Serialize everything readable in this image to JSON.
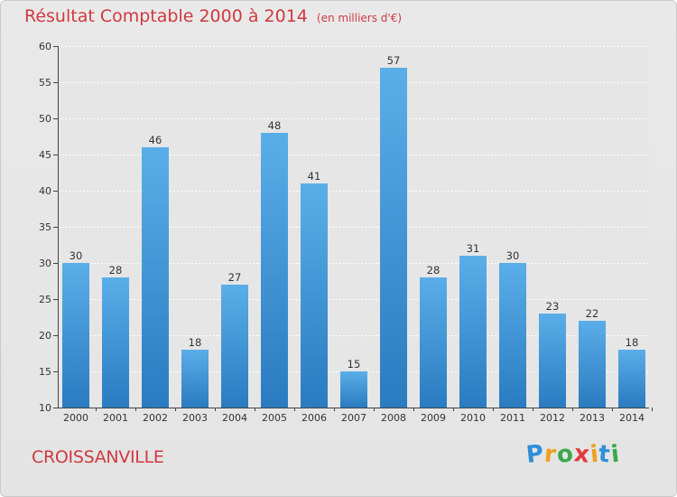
{
  "chart_data": {
    "type": "bar",
    "title": "Résultat Comptable 2000 à 2014",
    "subtitle": "(en milliers d'€)",
    "categories": [
      "2000",
      "2001",
      "2002",
      "2003",
      "2004",
      "2005",
      "2006",
      "2007",
      "2008",
      "2009",
      "2010",
      "2011",
      "2012",
      "2013",
      "2014"
    ],
    "values": [
      30,
      28,
      46,
      18,
      27,
      48,
      41,
      15,
      57,
      28,
      31,
      30,
      23,
      22,
      18
    ],
    "ylim": [
      10,
      60
    ],
    "yticks": [
      10,
      15,
      20,
      25,
      30,
      35,
      40,
      45,
      50,
      55,
      60
    ],
    "grid": true,
    "xlabel": "",
    "ylabel": "",
    "colors": {
      "bar_light": "#5aaee8",
      "bar_dark": "#2a7bc0",
      "title": "#d0393f"
    }
  },
  "footer": {
    "commune": "CROISSANVILLE",
    "logo_letters": [
      "P",
      "r",
      "o",
      "x",
      "i",
      "t",
      "i"
    ],
    "logo_colors": [
      "#2f8fd8",
      "#f0a020",
      "#3aa84a",
      "#e23a3a",
      "#f0a020",
      "#2f8fd8",
      "#3aa84a"
    ]
  }
}
